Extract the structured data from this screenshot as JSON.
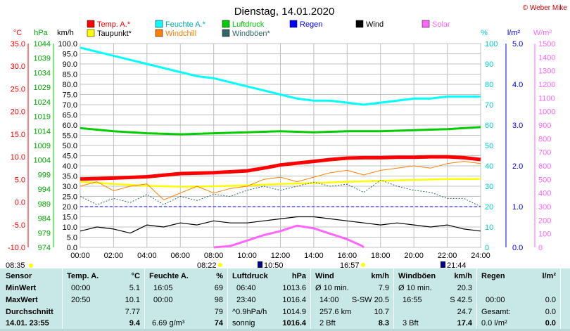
{
  "title": "Dienstag, 14.01.2020",
  "credit": "© Weber Mike",
  "legend": [
    {
      "label": "Temp. A.*",
      "color": "#ff0000"
    },
    {
      "label": "Feuchte A.*",
      "color": "#00ffff"
    },
    {
      "label": "Luftdruck",
      "color": "#00cc00"
    },
    {
      "label": "Regen",
      "color": "#0000ff"
    },
    {
      "label": "Wind",
      "color": "#000000"
    },
    {
      "label": "Solar",
      "color": "#ff66ff"
    },
    {
      "label": "Taupunkt*",
      "color": "#ffff00"
    },
    {
      "label": "Windchill",
      "color": "#ff8000"
    },
    {
      "label": "Windböen*",
      "color": "#336666"
    }
  ],
  "axis_units": {
    "temp": "°C",
    "press": "hPa",
    "wind": "km/h",
    "hum": "%",
    "rain": "l/m²",
    "solar": "W/m²"
  },
  "sun_times": {
    "sunrise": "08:22",
    "sunset": "16:57",
    "left": "08:35",
    "moonrise": "10:50",
    "moonset": "21:44"
  },
  "chart_data": {
    "type": "line",
    "x_label_ticks": [
      "00:00",
      "02:00",
      "04:00",
      "06:00",
      "08:00",
      "10:00",
      "12:00",
      "14:00",
      "16:00",
      "18:00",
      "20:00",
      "22:00",
      "24:00"
    ],
    "axes": {
      "temp": {
        "min": -10,
        "max": 35,
        "step": 5,
        "ticks": [
          "35.0",
          "30.0",
          "25.0",
          "20.0",
          "15.0",
          "10.0",
          "5.0",
          "0.0",
          "-5.0",
          "-10.0"
        ]
      },
      "press": {
        "ticks": [
          "1044",
          "1039",
          "1034",
          "1029",
          "1024",
          "1019",
          "1014",
          "1009",
          "1004",
          "999",
          "994",
          "989",
          "984",
          "979",
          "974"
        ]
      },
      "wind": {
        "min": 0,
        "max": 100,
        "step": 5,
        "ticks": [
          "100.0",
          "95.0",
          "90.0",
          "85.0",
          "80.0",
          "75.0",
          "70.0",
          "65.0",
          "60.0",
          "55.0",
          "50.0",
          "45.0",
          "40.0",
          "35.0",
          "30.0",
          "25.0",
          "20.0",
          "15.0",
          "10.0",
          "5.0",
          "0.0"
        ]
      },
      "hum": {
        "min": 0,
        "max": 100,
        "step": 10,
        "ticks": [
          "100",
          "90",
          "80",
          "70",
          "60",
          "50",
          "40",
          "30",
          "20",
          "10",
          "0"
        ]
      },
      "rain": {
        "min": 0,
        "max": 5,
        "ticks": [
          "5.0",
          "4.0",
          "3.0",
          "2.0",
          "1.0",
          "0.0"
        ]
      },
      "solar": {
        "min": 0,
        "max": 1500,
        "ticks": [
          "1500",
          "1400",
          "1300",
          "1200",
          "1100",
          "1000",
          "900",
          "800",
          "700",
          "600",
          "500",
          "400",
          "300",
          "200",
          "100",
          "0"
        ]
      }
    },
    "series": [
      {
        "name": "Feuchte A.*",
        "axis": "hum",
        "x": [
          0,
          1,
          2,
          3,
          4,
          5,
          6,
          7,
          8,
          9,
          10,
          11,
          12,
          13,
          14,
          15,
          16,
          17,
          18,
          19,
          20,
          21,
          22,
          23,
          24
        ],
        "values": [
          98,
          96,
          94,
          92,
          90,
          88,
          86,
          84,
          83,
          81,
          79,
          77,
          75,
          73,
          72,
          72,
          71,
          70,
          71,
          72,
          73,
          73,
          74,
          74,
          74
        ]
      },
      {
        "name": "Luftdruck",
        "axis": "wind",
        "x": [
          0,
          2,
          4,
          6,
          8,
          10,
          12,
          14,
          16,
          18,
          20,
          22,
          24
        ],
        "values": [
          58.5,
          57,
          56,
          55.5,
          56,
          56.5,
          57,
          56.5,
          57,
          57,
          57.5,
          58,
          59
        ]
      },
      {
        "name": "Temp. A.*",
        "axis": "temp",
        "x": [
          0,
          2,
          4,
          6,
          8,
          10,
          11,
          12,
          13,
          14,
          15,
          16,
          17,
          18,
          19,
          20,
          21,
          22,
          23,
          24
        ],
        "values": [
          5.1,
          5.3,
          5.6,
          6.3,
          6.5,
          6.9,
          7.5,
          8.2,
          8.6,
          9.0,
          9.4,
          9.7,
          9.8,
          9.8,
          9.9,
          9.9,
          10.0,
          10.0,
          9.8,
          9.4
        ]
      },
      {
        "name": "Taupunkt*",
        "axis": "temp",
        "x": [
          0,
          2,
          4,
          6,
          8,
          10,
          12,
          14,
          16,
          18,
          20,
          22,
          24
        ],
        "values": [
          4.5,
          4.0,
          3.6,
          3.4,
          3.5,
          3.7,
          4.0,
          4.2,
          4.5,
          4.7,
          4.9,
          5.1,
          5.1
        ]
      },
      {
        "name": "Windchill",
        "axis": "temp",
        "x": [
          0,
          1,
          2,
          3,
          4,
          5,
          6,
          7,
          8,
          9,
          10,
          11,
          12,
          13,
          14,
          15,
          16,
          17,
          18,
          19,
          20,
          21,
          22,
          23,
          24
        ],
        "values": [
          3.5,
          4.5,
          2.5,
          3.5,
          4.0,
          0.5,
          2.0,
          3.5,
          2.0,
          3.0,
          3.5,
          5.0,
          5.5,
          4.5,
          5.5,
          6.5,
          7.0,
          6.0,
          7.0,
          7.5,
          8.0,
          7.5,
          8.5,
          9.0,
          8.5
        ]
      },
      {
        "name": "Windböen*",
        "axis": "wind",
        "x": [
          0,
          1,
          2,
          3,
          4,
          5,
          6,
          7,
          8,
          9,
          10,
          11,
          12,
          13,
          14,
          15,
          16,
          17,
          18,
          19,
          20,
          21,
          22,
          23,
          24
        ],
        "values": [
          25,
          21,
          24,
          22,
          26,
          21,
          25,
          23,
          26,
          25,
          28,
          30,
          28,
          30,
          32,
          30,
          31,
          27,
          33,
          30,
          28,
          27,
          24,
          24,
          20
        ]
      },
      {
        "name": "Wind",
        "axis": "wind",
        "x": [
          0,
          1,
          2,
          3,
          4,
          5,
          6,
          7,
          8,
          9,
          10,
          11,
          12,
          13,
          14,
          15,
          16,
          17,
          18,
          19,
          20,
          21,
          22,
          23,
          24
        ],
        "values": [
          8,
          10,
          9,
          7,
          11,
          10,
          12,
          11,
          13,
          12,
          12,
          13,
          14,
          15,
          15,
          14,
          13,
          12,
          11,
          12,
          11,
          10,
          11,
          9,
          8
        ]
      },
      {
        "name": "Solar",
        "axis": "solar",
        "x": [
          8,
          9,
          10,
          11,
          12,
          13,
          14,
          15,
          16,
          16.9,
          17
        ],
        "values": [
          0,
          10,
          50,
          90,
          120,
          160,
          140,
          100,
          60,
          10,
          0
        ]
      }
    ],
    "rain_reference": 1.0
  },
  "table": {
    "sensor": {
      "head": "Sensor",
      "rows": [
        "MinWert",
        "MaxWert",
        "Durchschnitt"
      ],
      "footer": "14.01. 23:55"
    },
    "temp": {
      "head": "Temp. A.",
      "unit": "°C",
      "rows": [
        [
          "00:00",
          "5.1"
        ],
        [
          "20:50",
          "10.1"
        ],
        [
          "",
          "7.77"
        ]
      ],
      "footer": "9.4"
    },
    "hum": {
      "head": "Feuchte A.",
      "unit": "%",
      "rows": [
        [
          "16:05",
          "69"
        ],
        [
          "00:00",
          "98"
        ],
        [
          "",
          "79"
        ]
      ],
      "footer_left": "6.69 g/m³",
      "footer": "74"
    },
    "press": {
      "head": "Luftdruck",
      "unit": "hPa",
      "rows": [
        [
          "06:40",
          "1013.6"
        ],
        [
          "23:40",
          "1016.4"
        ],
        [
          "^0.9hPa/h",
          "1014.9"
        ]
      ],
      "footer_left": "sonnig",
      "footer": "1016.4"
    },
    "wind": {
      "head": "Wind",
      "unit": "km/h",
      "rows": [
        [
          "Ø 10 min.",
          "7.9"
        ],
        [
          "14:00",
          "S-SW 20.5"
        ],
        [
          "257.6 km",
          "10.7"
        ]
      ],
      "footer_left": "2 Bft",
      "footer": "8.3"
    },
    "gust": {
      "head": "Windböen",
      "unit": "km/h",
      "rows": [
        [
          "Ø 10 min.",
          "20.3"
        ],
        [
          "16:55",
          "S 42.5"
        ],
        [
          "",
          "24.7"
        ]
      ],
      "footer_left": "3 Bft",
      "footer": "17.4"
    },
    "rain": {
      "head": "Regen",
      "unit": "l/m²",
      "rows": [
        [
          "",
          ""
        ],
        [
          "00:00",
          "0.0"
        ],
        [
          "Gesamt:",
          "0.0"
        ]
      ],
      "footer_left": "0.0 l/m²",
      "footer": "0.0"
    }
  }
}
